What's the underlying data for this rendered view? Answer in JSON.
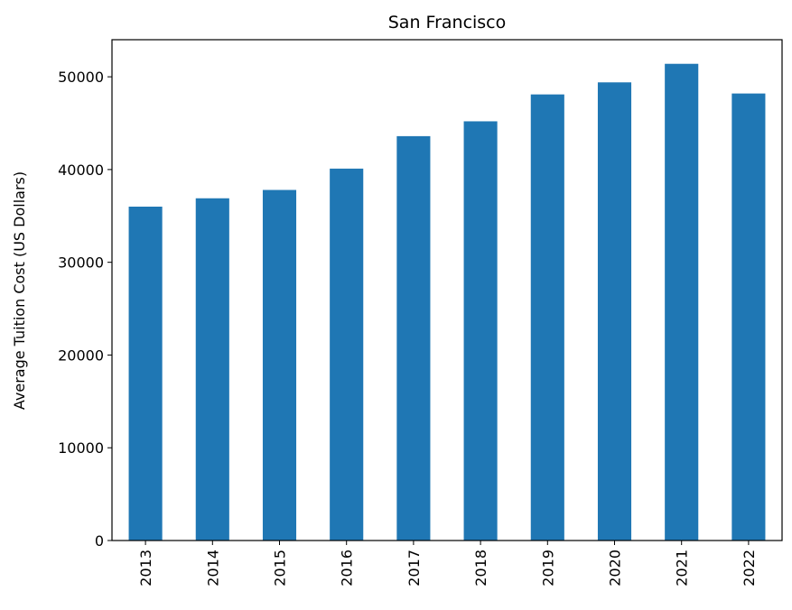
{
  "chart_data": {
    "type": "bar",
    "title": "San Francisco",
    "xlabel": "",
    "ylabel": "Average Tuition Cost (US Dollars)",
    "categories": [
      "2013",
      "2014",
      "2015",
      "2016",
      "2017",
      "2018",
      "2019",
      "2020",
      "2021",
      "2022"
    ],
    "values": [
      36000,
      36900,
      37800,
      40100,
      43600,
      45200,
      48100,
      49400,
      51400,
      48200
    ],
    "ylim": [
      0,
      54000
    ],
    "yticks": [
      0,
      10000,
      20000,
      30000,
      40000,
      50000
    ],
    "ytick_labels": [
      "0",
      "10000",
      "20000",
      "30000",
      "40000",
      "50000"
    ],
    "bar_color": "#1f77b4",
    "grid": false,
    "legend": false
  }
}
